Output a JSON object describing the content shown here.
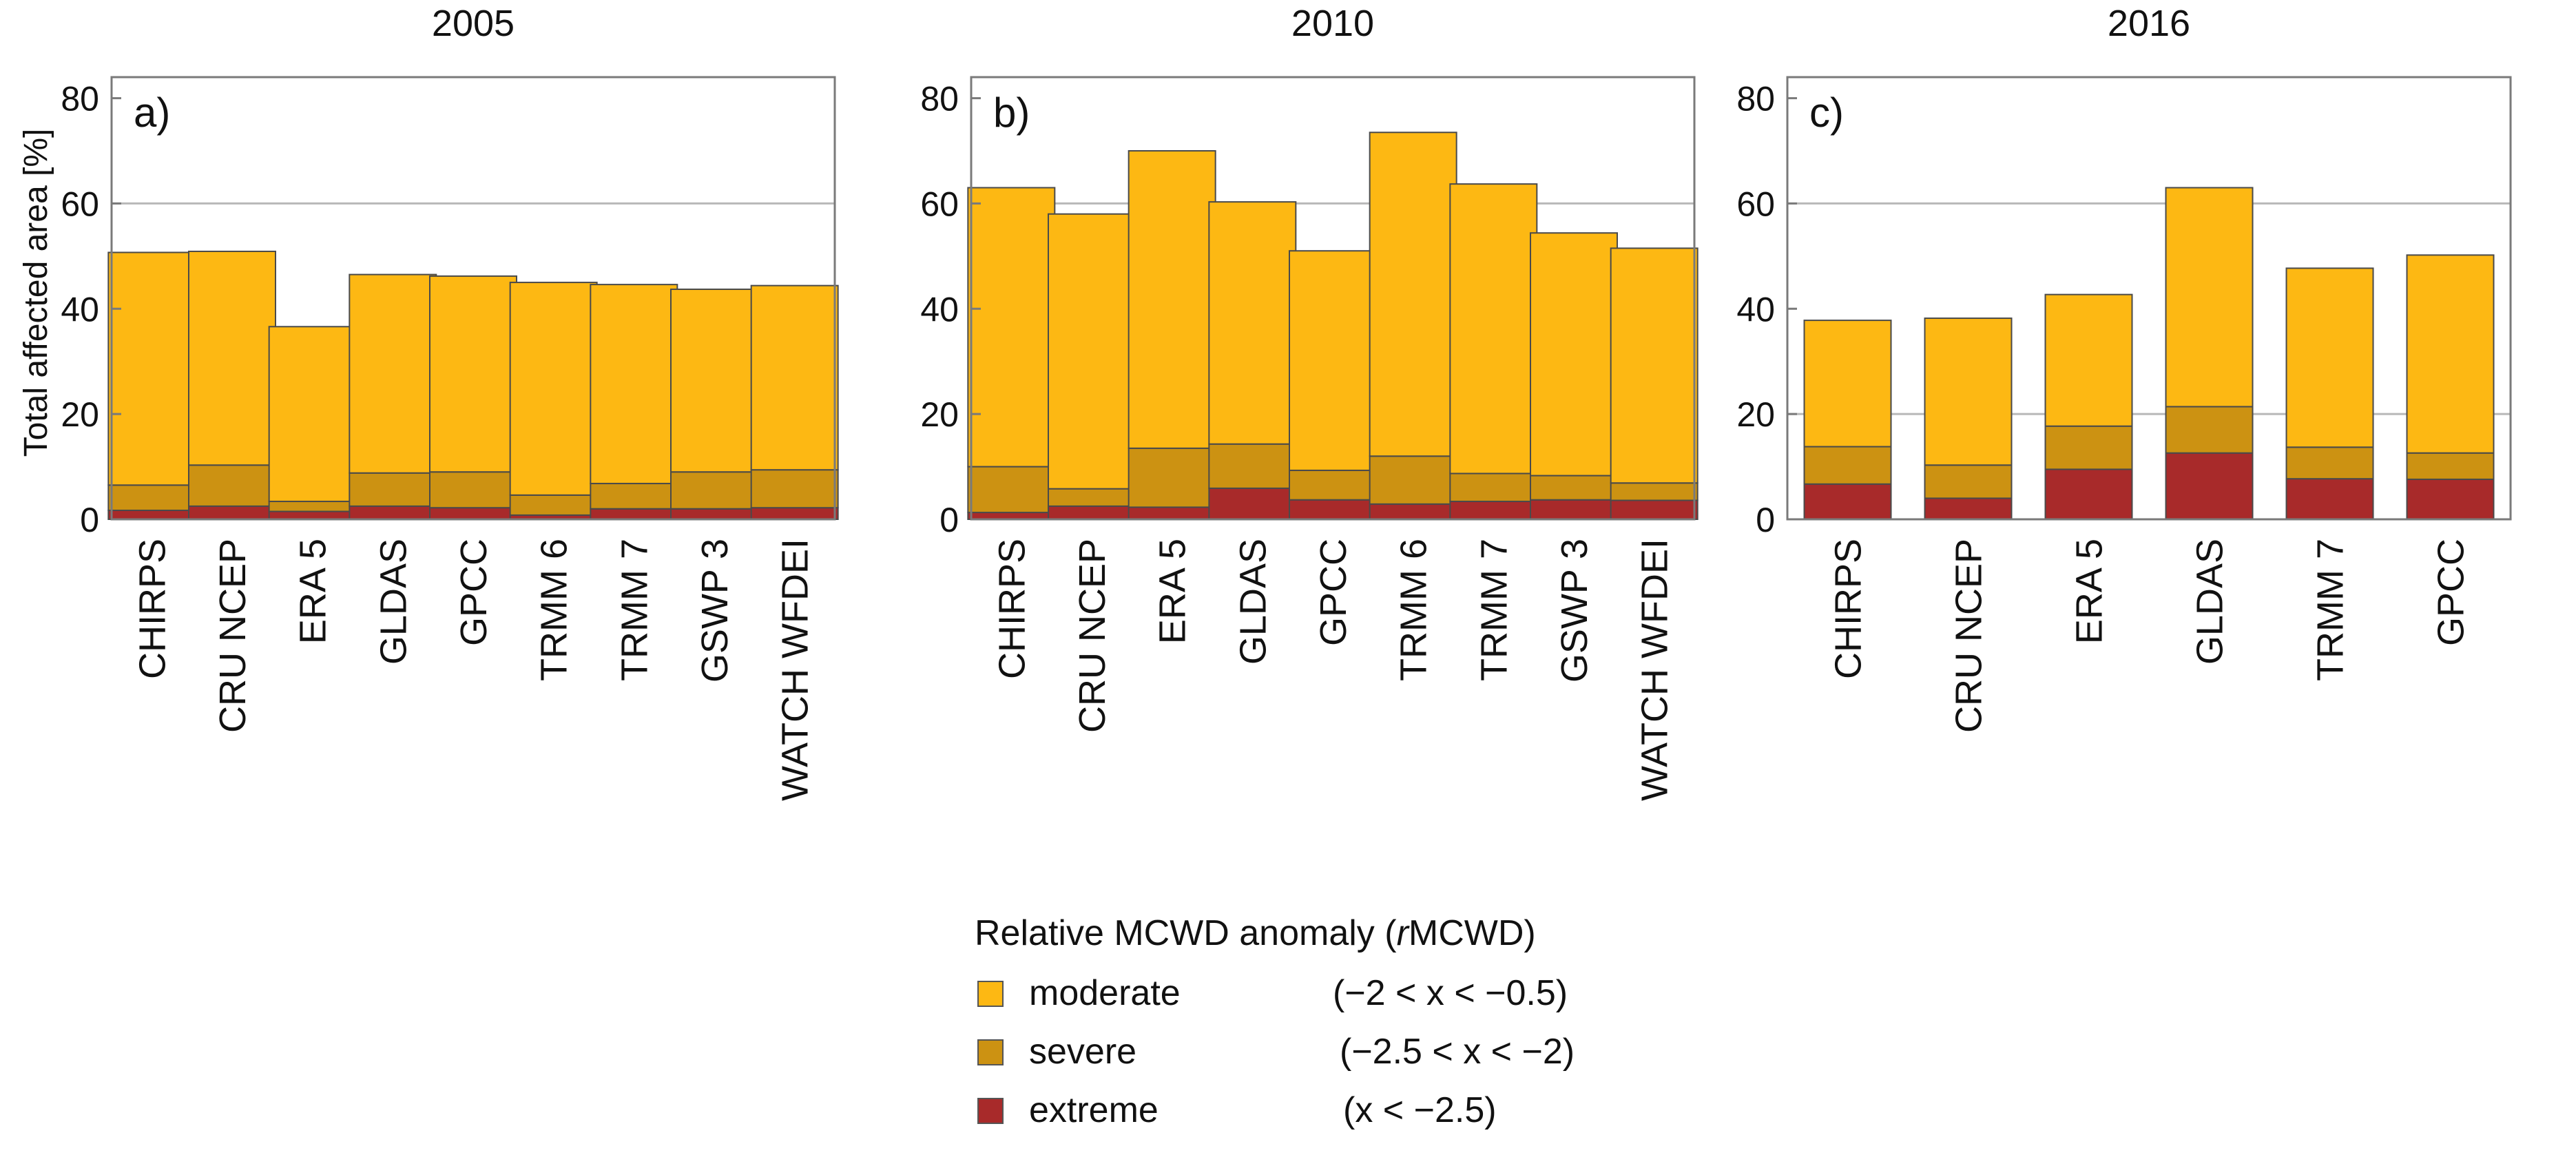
{
  "chart_data": [
    {
      "type": "bar",
      "stacked": true,
      "title": "2005",
      "panel_label": "a)",
      "ylabel": "Total affected area [%]",
      "ylim": [
        0,
        84
      ],
      "yticks": [
        0,
        20,
        40,
        60,
        80
      ],
      "gridlines": [
        20,
        60
      ],
      "categories": [
        "CHIRPS",
        "CRU NCEP",
        "ERA 5",
        "GLDAS",
        "GPCC",
        "TRMM 6",
        "TRMM 7",
        "GSWP 3",
        "WATCH WFDEI"
      ],
      "series": [
        {
          "name": "extreme",
          "values": [
            1.7,
            2.5,
            1.5,
            2.5,
            2.2,
            0.8,
            2.0,
            2.0,
            2.2
          ]
        },
        {
          "name": "severe",
          "values": [
            4.8,
            7.8,
            1.9,
            6.3,
            6.8,
            3.8,
            4.8,
            7.0,
            7.2
          ]
        },
        {
          "name": "moderate",
          "values": [
            44.2,
            40.6,
            33.2,
            37.7,
            37.2,
            40.4,
            37.8,
            34.7,
            35.0
          ]
        }
      ]
    },
    {
      "type": "bar",
      "stacked": true,
      "title": "2010",
      "panel_label": "b)",
      "ylabel": "",
      "ylim": [
        0,
        84
      ],
      "yticks": [
        0,
        20,
        40,
        60,
        80
      ],
      "gridlines": [
        20,
        60
      ],
      "categories": [
        "CHIRPS",
        "CRU NCEP",
        "ERA 5",
        "GLDAS",
        "GPCC",
        "TRMM 6",
        "TRMM 7",
        "GSWP 3",
        "WATCH WFDEI"
      ],
      "series": [
        {
          "name": "extreme",
          "values": [
            1.3,
            2.5,
            2.3,
            5.9,
            3.7,
            2.9,
            3.4,
            3.7,
            3.6
          ]
        },
        {
          "name": "severe",
          "values": [
            8.7,
            3.3,
            11.2,
            8.4,
            5.6,
            9.1,
            5.3,
            4.6,
            3.3
          ]
        },
        {
          "name": "moderate",
          "values": [
            53.0,
            52.2,
            56.5,
            46.0,
            41.7,
            61.5,
            55.0,
            46.1,
            44.6
          ]
        }
      ]
    },
    {
      "type": "bar",
      "stacked": true,
      "title": "2016",
      "panel_label": "c)",
      "ylabel": "",
      "ylim": [
        0,
        84
      ],
      "yticks": [
        0,
        20,
        40,
        60,
        80
      ],
      "gridlines": [
        20,
        60
      ],
      "categories": [
        "CHIRPS",
        "CRU NCEP",
        "ERA 5",
        "GLDAS",
        "TRMM 7",
        "GPCC"
      ],
      "series": [
        {
          "name": "extreme",
          "values": [
            6.7,
            4.0,
            9.5,
            12.6,
            7.7,
            7.6
          ]
        },
        {
          "name": "severe",
          "values": [
            7.1,
            6.3,
            8.2,
            8.8,
            6.0,
            5.0
          ]
        },
        {
          "name": "moderate",
          "values": [
            24.0,
            27.9,
            25.0,
            41.6,
            34.0,
            37.6
          ]
        }
      ]
    }
  ],
  "legend": {
    "title_prefix": "Relative MCWD anomaly (",
    "title_italic": "r",
    "title_suffix": "MCWD)",
    "items": [
      {
        "label": "moderate",
        "range": "(−2 < x < −0.5)",
        "color": "#FDB813"
      },
      {
        "label": "severe",
        "range": "(−2.5 < x < −2)",
        "color": "#CC9212"
      },
      {
        "label": "extreme",
        "range": "(x < −2.5)",
        "color": "#A82A2A"
      }
    ]
  },
  "colors": {
    "moderate": "#FDB813",
    "severe": "#CC9212",
    "extreme": "#A82A2A",
    "grid": "#B8B8B8",
    "frame": "#7A7A7A",
    "bar_edge": "#4A4A4A"
  }
}
